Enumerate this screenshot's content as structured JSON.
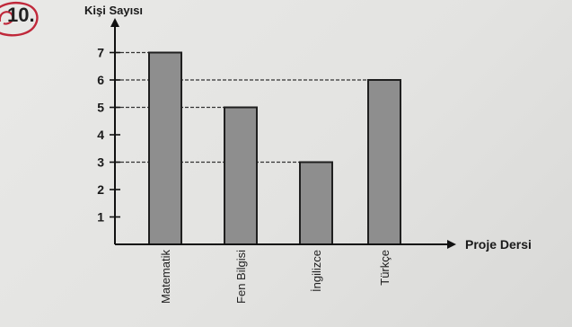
{
  "question": {
    "number": "10."
  },
  "chart_data": {
    "type": "bar",
    "ylabel": "Kişi Sayısı",
    "xlabel": "Proje Dersi",
    "categories": [
      "Matematik",
      "Fen Bilgisi",
      "İngilizce",
      "Türkçe"
    ],
    "values": [
      7,
      5,
      3,
      6
    ],
    "yticks": [
      1,
      2,
      3,
      4,
      5,
      6,
      7
    ],
    "ylim": [
      0,
      7.8
    ],
    "bar_color": "#8e8e8e",
    "reference_lines": [
      7,
      6,
      5,
      3
    ],
    "grid": false
  }
}
